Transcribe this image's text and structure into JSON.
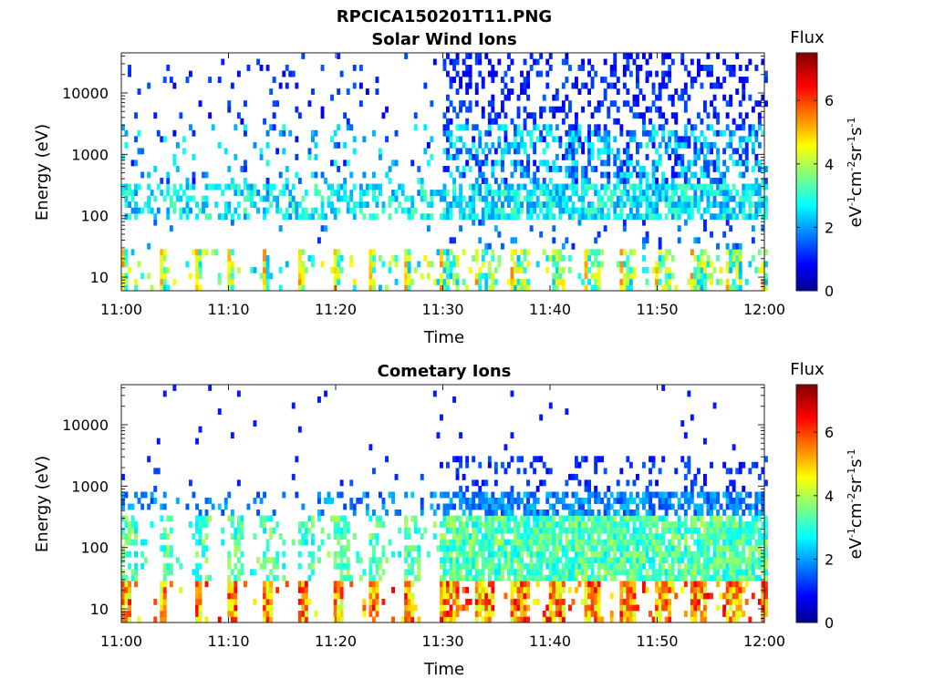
{
  "figure": {
    "title": "RPCICA150201T11.PNG"
  },
  "chart_data": [
    {
      "type": "heatmap",
      "title": "Solar Wind Ions",
      "xlabel": "Time",
      "ylabel": "Energy (eV)",
      "yscale": "log",
      "x_ticks": [
        "11:00",
        "11:10",
        "11:20",
        "11:30",
        "11:40",
        "11:50",
        "12:00"
      ],
      "x_range_minutes": [
        0,
        60
      ],
      "y_ticks": [
        10,
        100,
        1000,
        10000
      ],
      "y_tick_labels": [
        "10",
        "100",
        "1000",
        "10000"
      ],
      "ylim": [
        6,
        45000
      ],
      "colorbar": {
        "title": "Flux",
        "unit": "eV-1cm-2sr-1s-1",
        "range": [
          0,
          7.5
        ],
        "ticks": [
          0,
          2,
          4,
          6
        ],
        "tick_labels": [
          "0",
          "2",
          "4",
          "6"
        ]
      },
      "grid": false,
      "colormap": "jet"
    },
    {
      "type": "heatmap",
      "title": "Cometary Ions",
      "xlabel": "Time",
      "ylabel": "Energy (eV)",
      "yscale": "log",
      "x_ticks": [
        "11:00",
        "11:10",
        "11:20",
        "11:30",
        "11:40",
        "11:50",
        "12:00"
      ],
      "x_range_minutes": [
        0,
        60
      ],
      "y_ticks": [
        10,
        100,
        1000,
        10000
      ],
      "y_tick_labels": [
        "10",
        "100",
        "1000",
        "10000"
      ],
      "ylim": [
        6,
        45000
      ],
      "colorbar": {
        "title": "Flux",
        "unit": "eV-1cm-2sr-1s-1",
        "range": [
          0,
          7.5
        ],
        "ticks": [
          0,
          2,
          4,
          6
        ],
        "tick_labels": [
          "0",
          "2",
          "4",
          "6"
        ]
      },
      "grid": false,
      "colormap": "jet"
    }
  ]
}
